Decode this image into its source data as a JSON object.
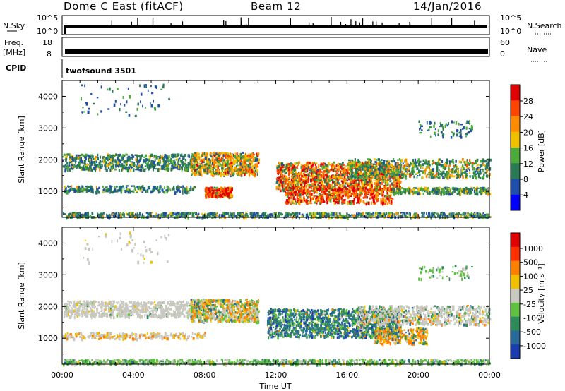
{
  "header": {
    "station": "Dome C East (fitACF)",
    "beam": "Beam 12",
    "date": "14/Jan/2016"
  },
  "strips": {
    "nsky_label": "N.Sky",
    "nsky_ticks": [
      "10^5",
      "10^0"
    ],
    "nsearch_label": "N.Search",
    "nsearch_ticks": [
      "10^5",
      "10^0"
    ],
    "freq_label": "Freq.",
    "freq_unit": "[MHz]",
    "freq_ticks": [
      "18",
      "8"
    ],
    "nave_label": "Nave",
    "nave_ticks": [
      "60",
      "0"
    ],
    "cpid_label": "CPID",
    "cpid_value": "twofsound 3501"
  },
  "chart_data": [
    {
      "type": "heatmap",
      "name": "power",
      "xlabel": "",
      "ylabel": "Slant Range [km]",
      "xlim": [
        0,
        24
      ],
      "ylim": [
        180,
        4500
      ],
      "y_ticks": [
        "1000",
        "2000",
        "3000",
        "4000"
      ],
      "colorbar": {
        "label": "Power [dB]",
        "range": [
          0,
          32
        ],
        "ticks": [
          "4",
          "8",
          "12",
          "16",
          "20",
          "24",
          "28"
        ],
        "colors": [
          "#0000ff",
          "#1f4fa8",
          "#2a7a56",
          "#4caa3a",
          "#f0c000",
          "#ff8c00",
          "#ff4400",
          "#e00000"
        ]
      }
    },
    {
      "type": "heatmap",
      "name": "velocity",
      "xlabel": "Time UT",
      "ylabel": "Slant Range [km]",
      "xlim": [
        0,
        24
      ],
      "ylim": [
        180,
        4500
      ],
      "x_ticks": [
        "00:00",
        "04:00",
        "08:00",
        "12:00",
        "16:00",
        "20:00",
        "00:00"
      ],
      "y_ticks": [
        "1000",
        "2000",
        "3000",
        "4000"
      ],
      "colorbar": {
        "label": "Velocity [m s⁻¹]",
        "ticks": [
          "1000",
          "500",
          "100",
          "25",
          "-25",
          "-100",
          "-500",
          "-1000"
        ],
        "colors": [
          "#1a3cb0",
          "#2a6a9a",
          "#2e8a5a",
          "#60c040",
          "#c8c8c0",
          "#f0c000",
          "#ff8000",
          "#ff3000",
          "#e00000"
        ]
      }
    }
  ]
}
